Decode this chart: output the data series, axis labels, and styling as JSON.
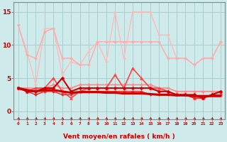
{
  "background_color": "#ceeaea",
  "grid_color": "#aacfcf",
  "x_labels": [
    "0",
    "1",
    "2",
    "3",
    "4",
    "5",
    "6",
    "7",
    "8",
    "9",
    "10",
    "11",
    "12",
    "13",
    "14",
    "15",
    "16",
    "17",
    "18",
    "19",
    "20",
    "21",
    "22",
    "23"
  ],
  "xlabel": "Vent moyen/en rafales ( km/h )",
  "yticks": [
    0,
    5,
    10,
    15
  ],
  "ylim": [
    -1.2,
    16.5
  ],
  "xlim": [
    -0.5,
    23.5
  ],
  "lines": [
    {
      "y": [
        13,
        8.5,
        8,
        12,
        12.5,
        8,
        8,
        7,
        7,
        10.5,
        10.5,
        10.5,
        10.5,
        10.5,
        10.5,
        10.5,
        10.5,
        8,
        8,
        8,
        7,
        8,
        8,
        10.5
      ],
      "color": "#ffaaaa",
      "lw": 1.0,
      "marker": "D",
      "ms": 2.0,
      "zorder": 2
    },
    {
      "y": [
        13,
        9,
        4,
        12.5,
        12.5,
        5.5,
        7.5,
        7,
        9,
        10.5,
        7.5,
        15,
        8,
        15,
        15,
        15,
        11.5,
        11.5,
        8,
        8,
        7,
        8,
        8,
        10.5
      ],
      "color": "#ffbbbb",
      "lw": 1.0,
      "marker": "D",
      "ms": 2.0,
      "zorder": 1
    },
    {
      "y": [
        3.5,
        3.5,
        3.5,
        3.5,
        4,
        3.5,
        3.5,
        4,
        4,
        4,
        4,
        4,
        4,
        4,
        4,
        4,
        3.5,
        3.5,
        3.0,
        3.0,
        3.0,
        3.0,
        3.0,
        3.0
      ],
      "color": "#ff8888",
      "lw": 1.2,
      "marker": "D",
      "ms": 2.0,
      "zorder": 3
    },
    {
      "y": [
        3.5,
        3.0,
        3.5,
        3.5,
        5,
        3,
        2,
        3,
        3.5,
        3.5,
        3.5,
        5.5,
        3.5,
        6.5,
        5,
        3.5,
        3.5,
        3,
        2.5,
        2.5,
        2,
        2,
        2.5,
        3
      ],
      "color": "#ff4444",
      "lw": 1.2,
      "marker": "^",
      "ms": 3.0,
      "zorder": 4
    },
    {
      "y": [
        3.5,
        3.0,
        3.0,
        3.5,
        3.5,
        5.0,
        3.0,
        3.5,
        3.5,
        3.5,
        3.5,
        3.5,
        3.5,
        3.5,
        3.5,
        3.5,
        3.0,
        3.0,
        2.5,
        2.5,
        2.5,
        2.0,
        2.5,
        3.0
      ],
      "color": "#cc0000",
      "lw": 1.5,
      "marker": "D",
      "ms": 2.5,
      "zorder": 5
    },
    {
      "y": [
        3.5,
        3.0,
        2.5,
        3.0,
        3.0,
        2.5,
        2.5,
        3.0,
        3.0,
        3.0,
        3.0,
        3.0,
        3.0,
        3.0,
        3.0,
        2.5,
        2.5,
        2.5,
        2.5,
        2.5,
        2.0,
        2.0,
        2.5,
        2.5
      ],
      "color": "#ee2222",
      "lw": 1.0,
      "marker": "D",
      "ms": 2.0,
      "zorder": 4
    },
    {
      "y": [
        3.5,
        3.2,
        3.0,
        3.2,
        3.2,
        3.0,
        2.8,
        2.9,
        2.9,
        2.9,
        2.8,
        2.8,
        2.7,
        2.7,
        2.7,
        2.6,
        2.5,
        2.5,
        2.4,
        2.4,
        2.3,
        2.3,
        2.3,
        2.3
      ],
      "color": "#cc0000",
      "lw": 2.2,
      "marker": null,
      "ms": 0,
      "zorder": 6
    }
  ],
  "wind_arrow_color": "#cc0000",
  "tick_color": "#cc0000",
  "label_color": "#cc0000",
  "spine_color": "#888888"
}
